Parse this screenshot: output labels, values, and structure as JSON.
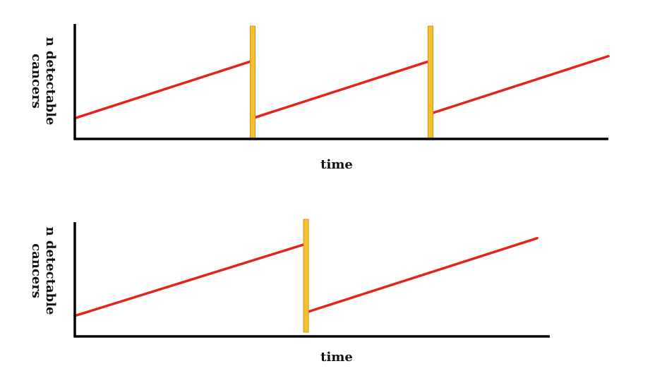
{
  "chart_data": [
    {
      "type": "line",
      "xlabel": "time",
      "ylabel": "n detectable cancers",
      "ylabel_lines": [
        "n detectable",
        "cancers"
      ],
      "screenings": [
        1,
        2
      ],
      "segments": [
        {
          "x": [
            0,
            1
          ],
          "y": [
            0.18,
            0.68
          ]
        },
        {
          "x": [
            1,
            2
          ],
          "y": [
            0.18,
            0.68
          ]
        },
        {
          "x": [
            2,
            3
          ],
          "y": [
            0.22,
            0.72
          ]
        }
      ],
      "xlim": [
        0,
        3
      ],
      "ylim": [
        0,
        1
      ],
      "colors": {
        "line": "#e3241b",
        "screening": "#f2c230",
        "screening_edge": "#e08a1e",
        "axis": "#000000"
      }
    },
    {
      "type": "line",
      "xlabel": "time",
      "ylabel": "n detectable cancers",
      "ylabel_lines": [
        "n detectable",
        "cancers"
      ],
      "screenings": [
        1
      ],
      "segments": [
        {
          "x": [
            0,
            1
          ],
          "y": [
            0.18,
            0.81
          ]
        },
        {
          "x": [
            1,
            2
          ],
          "y": [
            0.21,
            0.86
          ]
        }
      ],
      "xlim": [
        0,
        2.03
      ],
      "ylim": [
        0,
        1
      ],
      "colors": {
        "line": "#e3241b",
        "screening": "#f2c230",
        "screening_edge": "#e08a1e",
        "axis": "#000000"
      }
    }
  ]
}
